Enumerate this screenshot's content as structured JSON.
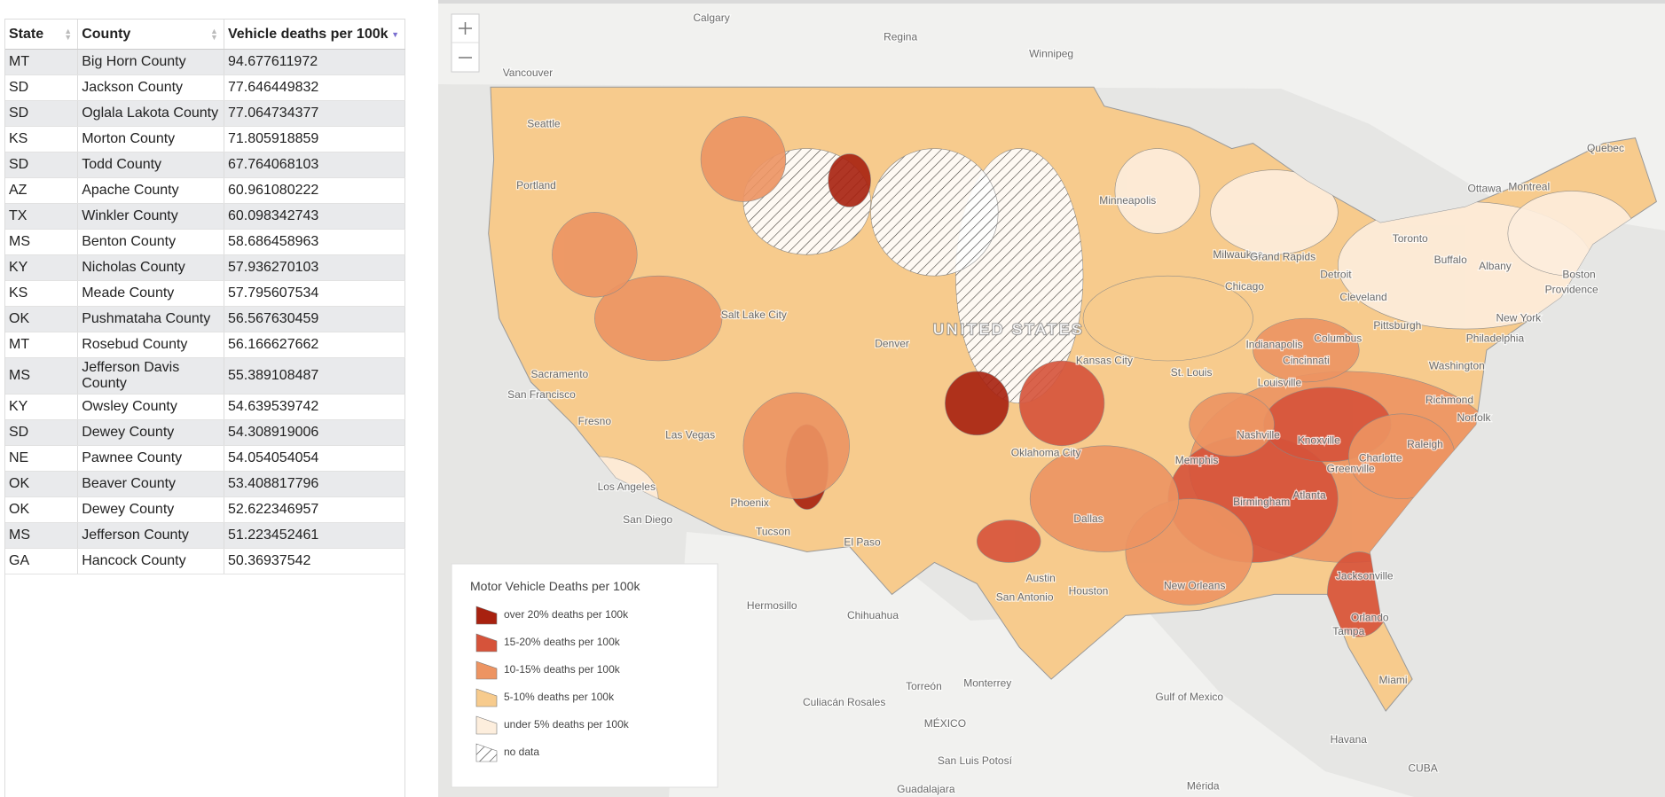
{
  "table": {
    "headers": [
      "State",
      "County",
      "Vehicle deaths per 100k"
    ],
    "rows": [
      [
        "MT",
        "Big Horn County",
        94.677611972
      ],
      [
        "SD",
        "Jackson County",
        77.646449832
      ],
      [
        "SD",
        "Oglala Lakota County",
        77.064734377
      ],
      [
        "KS",
        "Morton County",
        71.805918859
      ],
      [
        "SD",
        "Todd County",
        67.764068103
      ],
      [
        "AZ",
        "Apache County",
        60.961080222
      ],
      [
        "TX",
        "Winkler County",
        60.098342743
      ],
      [
        "MS",
        "Benton County",
        58.686458963
      ],
      [
        "KY",
        "Nicholas County",
        57.936270103
      ],
      [
        "KS",
        "Meade County",
        57.795607534
      ],
      [
        "OK",
        "Pushmataha County",
        56.567630459
      ],
      [
        "MT",
        "Rosebud County",
        56.166627662
      ],
      [
        "MS",
        "Jefferson Davis County",
        55.389108487
      ],
      [
        "KY",
        "Owsley County",
        54.639539742
      ],
      [
        "SD",
        "Dewey County",
        54.308919006
      ],
      [
        "NE",
        "Pawnee County",
        54.054054054
      ],
      [
        "OK",
        "Beaver County",
        53.408817796
      ],
      [
        "OK",
        "Dewey County",
        52.622346957
      ],
      [
        "MS",
        "Jefferson County",
        51.223452461
      ],
      [
        "GA",
        "Hancock County",
        50.36937542
      ]
    ]
  },
  "map": {
    "legend": {
      "title": "Motor Vehicle Deaths per 100k",
      "items": [
        {
          "label": "over 20% deaths per 100k",
          "color": "#a8210f"
        },
        {
          "label": "15-20% deaths per 100k",
          "color": "#d6533a"
        },
        {
          "label": "10-15% deaths per 100k",
          "color": "#ed9462"
        },
        {
          "label": "5-10% deaths per 100k",
          "color": "#f7cb8d"
        },
        {
          "label": "under 5% deaths per 100k",
          "color": "#fdeedd"
        },
        {
          "label": "no data"
        }
      ]
    },
    "labels": [
      "Calgary",
      "Regina",
      "Winnipeg",
      "Vancouver",
      "Seattle",
      "Portland",
      "Quebec",
      "Ottawa",
      "Montreal",
      "Toronto",
      "Buffalo",
      "Albany",
      "Boston",
      "Providence",
      "Minneapolis",
      "Milwaukee",
      "Grand Rapids",
      "Detroit",
      "Chicago",
      "Cleveland",
      "Pittsburgh",
      "New York",
      "Philadelphia",
      "Columbus",
      "Indianapolis",
      "Cincinnati",
      "Washington",
      "Richmond",
      "Norfolk",
      "Salt Lake City",
      "Denver",
      "Kansas City",
      "St. Louis",
      "Louisville",
      "Sacramento",
      "San Francisco",
      "Fresno",
      "Las Vegas",
      "Nashville",
      "Knoxville",
      "Raleigh",
      "Charlotte",
      "Greenville",
      "Memphis",
      "Oklahoma City",
      "Atlanta",
      "Birmingham",
      "Los Angeles",
      "Phoenix",
      "Dallas",
      "San Diego",
      "Tucson",
      "El Paso",
      "Austin",
      "Houston",
      "New Orleans",
      "San Antonio",
      "Jacksonville",
      "Orlando",
      "Tampa",
      "Miami",
      "Hermosillo",
      "Chihuahua",
      "Torreón",
      "Monterrey",
      "Culiacán Rosales",
      "MÉXICO",
      "Gulf of Mexico",
      "Havana",
      "CUBA",
      "San Luis Potosí",
      "Guadalajara",
      "Mérida",
      "UNITED STATES"
    ]
  }
}
